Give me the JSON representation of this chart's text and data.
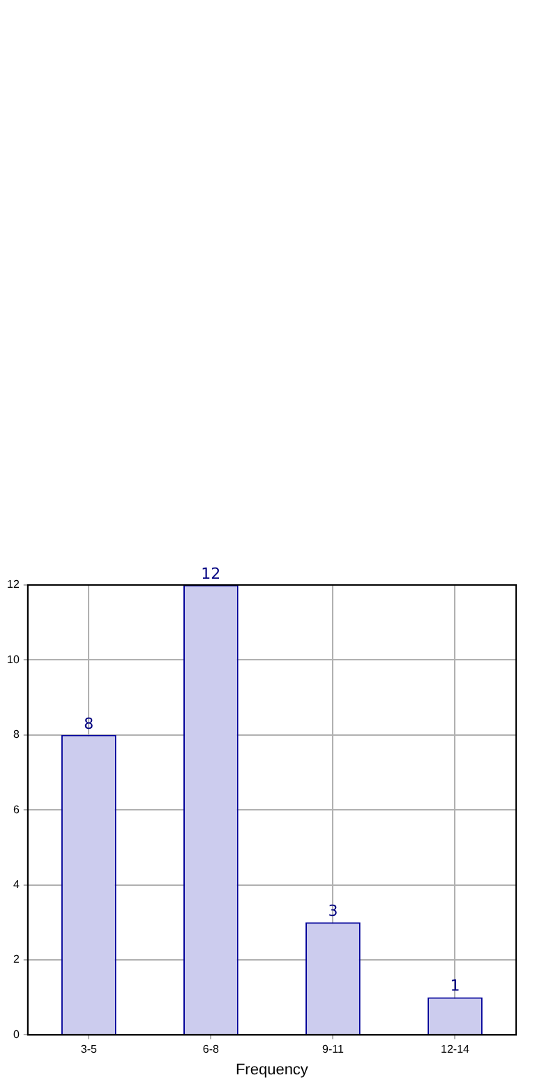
{
  "chart_data": {
    "type": "bar",
    "xlabel": "Frequency",
    "categories": [
      "3-5",
      "6-8",
      "9-11",
      "12-14"
    ],
    "values": [
      8,
      12,
      3,
      1
    ],
    "color": "#ccccee",
    "ylim": [
      0,
      12
    ],
    "yticks": [
      0,
      2,
      4,
      6,
      8,
      10,
      12
    ],
    "grid": true,
    "data_labels": true
  }
}
